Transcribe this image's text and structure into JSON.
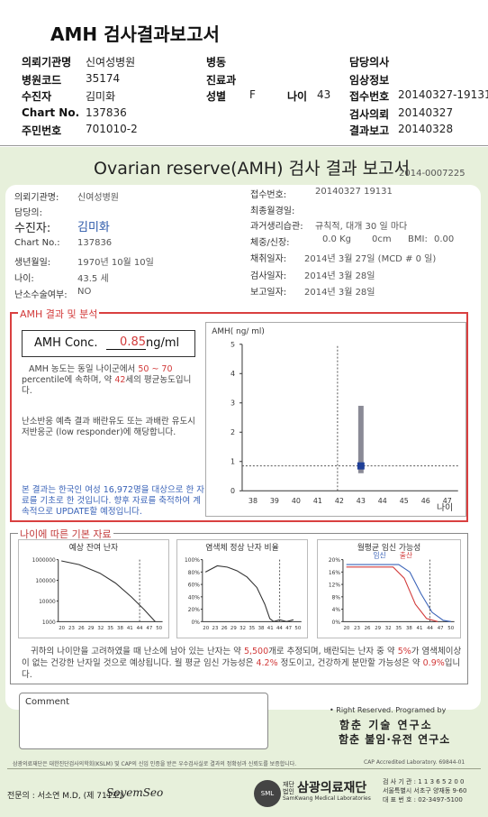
{
  "header": {
    "title": "AMH 검사결과보고서",
    "rows": [
      [
        {
          "label": "의뢰기관명",
          "value": "신여성병원"
        },
        {
          "label": "병동",
          "value": ""
        },
        {
          "label": "담당의사",
          "value": ""
        }
      ],
      [
        {
          "label": "병원코드",
          "value": "35174"
        },
        {
          "label": "진료과",
          "value": ""
        },
        {
          "label": "임상정보",
          "value": ""
        }
      ],
      [
        {
          "label": "수진자",
          "value": "김미화"
        },
        {
          "label": "성별",
          "value": "F"
        },
        {
          "label": "나이",
          "value": "43"
        },
        {
          "label": "접수번호",
          "value": "20140327-19131"
        }
      ],
      [
        {
          "label": "Chart No.",
          "value": "137836"
        },
        {
          "label": "검사의뢰",
          "value": "20140327"
        }
      ],
      [
        {
          "label": "주민번호",
          "value": "701010-2"
        },
        {
          "label": "결과보고",
          "value": "20140328"
        }
      ]
    ]
  },
  "report": {
    "title": "Ovarian reserve(AMH) 검사 결과 보고서",
    "report_no": "2014-0007225",
    "left": {
      "agency_label": "의뢰기관명:",
      "agency": "신여성병원",
      "doctor_label": "담당의:",
      "patient_label": "수진자:",
      "patient": "김미화",
      "chart_label": "Chart No.:",
      "chart": "137836",
      "birth_label": "생년월일:",
      "birth": "1970년 10월 10일",
      "age_label": "나이:",
      "age": "43.5 세",
      "surgery_label": "난소수술여부:",
      "surgery": "NO"
    },
    "right": {
      "receipt_label": "접수번호:",
      "receipt": "20140327 19131",
      "mens_label": "최종월경일:",
      "cycle_label": "과거생리습관:",
      "cycle": "규칙적, 대개  30 일 마다",
      "weight_label": "체중/신장:",
      "weight": "0.0 Kg",
      "height": "0cm",
      "bmi_label": "BMI:",
      "bmi": "0.00",
      "draw_label": "채취일자:",
      "draw": "2014년 3월 27일  (MCD # 0 일)",
      "test_label": "검사일자:",
      "test": "2014년 3월 28일",
      "report_label": "보고일자:",
      "report": "2014년 3월 28일"
    }
  },
  "amh": {
    "section_title": "AMH 결과 및 분석",
    "conc_label": "AMH Conc.",
    "conc_value": "0.85",
    "conc_unit": "ng/ml",
    "para1_a": "AMH 농도는 동일 나이군에서",
    "para1_range": "50 ~ 70",
    "para1_b": "percentile에 속하며, 약",
    "para1_age": "42",
    "para1_c": "세의 평균농도입니다.",
    "para2": "난소반응 예측 결과 배란유도 또는 과배란 유도시 저반응군 (low responder)에 해당합니다.",
    "para3": "본 결과는 한국인 여성 16,972명을 대상으로 한 자료를 기초로 한 것입니다. 향후 자료를 축적하여 계속적으로 UPDATE할 예정입니다."
  },
  "chart_data": [
    {
      "type": "scatter",
      "title": "AMH( ng/ ml)",
      "xlabel": "나이",
      "categories": [
        "38",
        "39",
        "40",
        "41",
        "42",
        "43",
        "44",
        "45",
        "46",
        "47"
      ],
      "yticks": [
        "0",
        "1",
        "2",
        "3",
        "4",
        "5"
      ],
      "ylim": [
        0,
        5
      ],
      "range_bar": {
        "x": "43",
        "low": 0.6,
        "high": 2.9
      },
      "patient_point": {
        "x": "43",
        "y": 0.85
      },
      "reference_age": "42"
    },
    {
      "type": "line",
      "title": "예상 잔여 난자",
      "x": [
        "20",
        "23",
        "26",
        "29",
        "32",
        "35",
        "38",
        "41",
        "44",
        "47",
        "50"
      ],
      "yticks": [
        "1000000",
        "100000",
        "10000",
        "1000"
      ],
      "yscale": "log"
    },
    {
      "type": "line",
      "title": "염색체 정상 난자 비율",
      "x": [
        "20",
        "23",
        "26",
        "29",
        "32",
        "35",
        "38",
        "41",
        "44",
        "47",
        "50"
      ],
      "yticks": [
        "100%",
        "80%",
        "60%",
        "40%",
        "20%",
        "0%"
      ]
    },
    {
      "type": "line",
      "title": "월평균 임신 가능성",
      "legend": [
        "임신",
        "출산"
      ],
      "x": [
        "20",
        "23",
        "26",
        "29",
        "32",
        "35",
        "38",
        "41",
        "44",
        "47",
        "50"
      ],
      "yticks": [
        "20%",
        "16%",
        "12%",
        "8%",
        "4%",
        "0%"
      ]
    }
  ],
  "age_section": {
    "title": "나이에 따른 기본 자료",
    "summary_a": "귀하의 나이만을 고려하였을 때 난소에 남아 있는 난자는 약",
    "eggs": "5,500",
    "summary_b": "개로 추정되며, 배란되는 난자 중",
    "summary_c": "약",
    "normal_pct": "5%",
    "summary_d": "가 염색체이상이 없는 건강한 난자일 것으로 예상됩니다. 월 평균 임신 가능성은",
    "preg_pct": "4.2%",
    "summary_e": "정도이고, 건강하게 분만할 가능성은 약",
    "birth_pct": "0.9%",
    "summary_f": "입니다."
  },
  "footer": {
    "comment_label": "Comment",
    "rights": "• Right Reserved. Programed by",
    "org1": "함춘 기술 연구소",
    "org2": "함춘 불임·유전 연구소",
    "cert": "삼광의료재단은 대한진단검사의학회(KSLM) 및 CAP의 신임 인증을 받은 우수검사실로 결과의 정확성과 신뢰도를 보증합니다.",
    "cap": "CAP  Accredited  Laboratory.  69844-01",
    "doctor": "전문의 : 서소연 M.D, (제 711호)",
    "signature": "SoyemSeo",
    "foundation_small": "재단법인",
    "foundation": "삼광의료재단",
    "foundation_en": "SamKwang Medical Laboratories",
    "lab_info": [
      "검 사 기 관 : 1 1 3 6 5 2 0 0",
      "서울특별시 서초구 양재동 9-60",
      "대 표 번 호 : 02-3497-5100"
    ]
  }
}
